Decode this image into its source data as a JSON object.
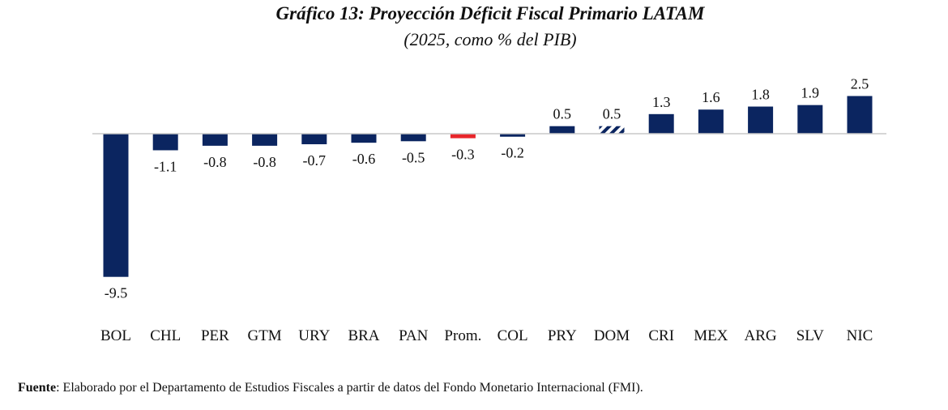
{
  "header": {
    "title_prefix": "Gráfico 13",
    "title_rest": ": Proyección Déficit Fiscal Primario LATAM",
    "subtitle": "(2025, como % del PIB)"
  },
  "chart_data": {
    "type": "bar",
    "categories": [
      "BOL",
      "CHL",
      "PER",
      "GTM",
      "URY",
      "BRA",
      "PAN",
      "Prom.",
      "COL",
      "PRY",
      "DOM",
      "CRI",
      "MEX",
      "ARG",
      "SLV",
      "NIC"
    ],
    "values": [
      -9.5,
      -1.1,
      -0.8,
      -0.8,
      -0.7,
      -0.6,
      -0.5,
      -0.3,
      -0.2,
      0.5,
      0.5,
      1.3,
      1.6,
      1.8,
      1.9,
      2.5
    ],
    "data_labels": [
      "-9.5",
      "-1.1",
      "-0.8",
      "-0.8",
      "-0.7",
      "-0.6",
      "-0.5",
      "-0.3",
      "-0.2",
      "0.5",
      "0.5",
      "1.3",
      "1.6",
      "1.8",
      "1.9",
      "2.5"
    ],
    "highlight": {
      "category": "Prom.",
      "color": "#e8262b"
    },
    "hatched": {
      "category": "DOM"
    },
    "bar_color": "#0b2560",
    "ylim": [
      -9.5,
      2.5
    ],
    "grid": false,
    "legend": "none"
  },
  "footer": {
    "source_label": "Fuente",
    "source_text": ": Elaborado por el Departamento de Estudios Fiscales a partir de datos del Fondo Monetario Internacional (FMI)."
  }
}
